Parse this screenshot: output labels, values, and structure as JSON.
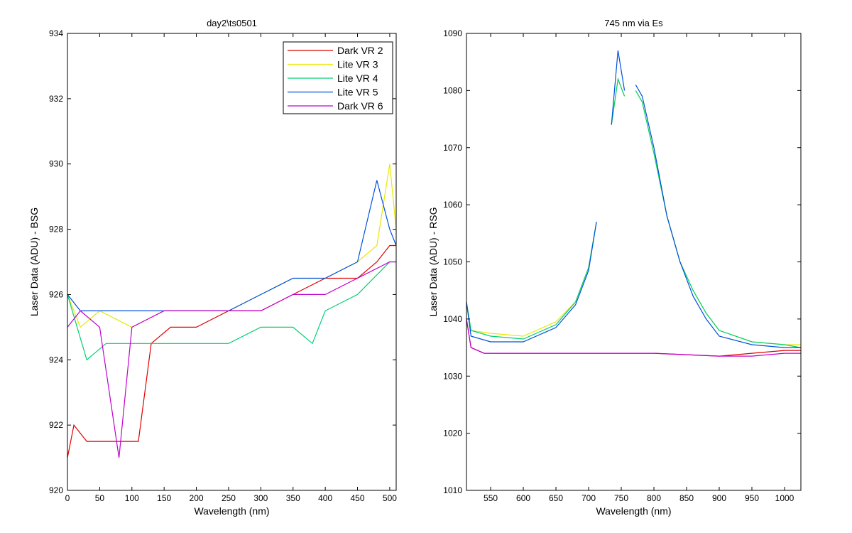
{
  "chart_data": [
    {
      "type": "line",
      "title": "day2\\ts0501",
      "xlabel": "Wavelength (nm)",
      "ylabel": "Laser Data (ADU) - BSG",
      "xlim": [
        0,
        510
      ],
      "ylim": [
        920,
        934
      ],
      "xticks": [
        0,
        50,
        100,
        150,
        200,
        250,
        300,
        350,
        400,
        450,
        500
      ],
      "yticks": [
        920,
        922,
        924,
        926,
        928,
        930,
        932,
        934
      ],
      "legend_position": "top-right",
      "series": [
        {
          "name": "Dark VR 2",
          "color": "#e00000",
          "x": [
            0,
            10,
            30,
            60,
            90,
            110,
            130,
            160,
            200,
            250,
            300,
            350,
            400,
            450,
            480,
            500,
            510
          ],
          "y": [
            921,
            922,
            921.5,
            921.5,
            921.5,
            921.5,
            924.5,
            925,
            925,
            925.5,
            925.5,
            926,
            926.5,
            926.5,
            927,
            927.5,
            927.5
          ]
        },
        {
          "name": "Lite VR 3",
          "color": "#e8e800",
          "x": [
            0,
            20,
            50,
            100,
            150,
            200,
            250,
            300,
            350,
            400,
            450,
            480,
            500,
            510
          ],
          "y": [
            926,
            925,
            925.5,
            925,
            925.5,
            925.5,
            925.5,
            926,
            926.5,
            926.5,
            927,
            927.5,
            930,
            928
          ]
        },
        {
          "name": "Lite VR 4",
          "color": "#00d070",
          "x": [
            0,
            30,
            60,
            100,
            150,
            200,
            250,
            300,
            350,
            380,
            400,
            450,
            500,
            510
          ],
          "y": [
            926,
            924,
            924.5,
            924.5,
            924.5,
            924.5,
            924.5,
            925,
            925,
            924.5,
            925.5,
            926,
            927,
            927
          ]
        },
        {
          "name": "Lite VR 5",
          "color": "#0050e0",
          "x": [
            0,
            20,
            50,
            100,
            150,
            200,
            250,
            300,
            350,
            400,
            450,
            480,
            500,
            510
          ],
          "y": [
            926,
            925.5,
            925.5,
            925.5,
            925.5,
            925.5,
            925.5,
            926,
            926.5,
            926.5,
            927,
            929.5,
            928,
            927.5
          ]
        },
        {
          "name": "Dark VR 6",
          "color": "#c000d0",
          "x": [
            0,
            20,
            50,
            80,
            100,
            150,
            200,
            250,
            300,
            350,
            400,
            450,
            500,
            510
          ],
          "y": [
            925,
            925.5,
            925,
            921,
            925,
            925.5,
            925.5,
            925.5,
            925.5,
            926,
            926,
            926.5,
            927,
            927
          ]
        }
      ]
    },
    {
      "type": "line",
      "title": "745 nm via Es",
      "xlabel": "Wavelength (nm)",
      "ylabel": "Laser Data (ADU) - RSG",
      "xlim": [
        513,
        1025
      ],
      "ylim": [
        1010,
        1090
      ],
      "xticks": [
        550,
        600,
        650,
        700,
        750,
        800,
        850,
        900,
        950,
        1000
      ],
      "yticks": [
        1010,
        1020,
        1030,
        1040,
        1050,
        1060,
        1070,
        1080,
        1090
      ],
      "series": [
        {
          "name": "Dark VR 2",
          "color": "#e00000",
          "x": [
            513,
            520,
            540,
            600,
            700,
            800,
            900,
            950,
            1000,
            1025
          ],
          "y": [
            1040,
            1035,
            1034,
            1034,
            1034,
            1034,
            1033.5,
            1034,
            1034.5,
            1034.5
          ]
        },
        {
          "name": "Lite VR 3",
          "color": "#e8e800",
          "x": [
            513,
            520,
            550,
            600,
            650,
            680,
            700,
            712,
            null,
            735,
            745,
            755,
            null,
            772,
            782,
            800,
            820,
            840,
            860,
            880,
            900,
            950,
            1000,
            1025
          ],
          "y": [
            1043,
            1038,
            1037.5,
            1037,
            1039.5,
            1043,
            1049,
            1057,
            null,
            1074,
            1082,
            1079,
            null,
            1080,
            1078,
            1069,
            1058,
            1050,
            1045,
            1041,
            1038,
            1036,
            1035.5,
            1035.5
          ]
        },
        {
          "name": "Lite VR 4",
          "color": "#00d070",
          "x": [
            513,
            520,
            550,
            600,
            650,
            680,
            700,
            712,
            null,
            735,
            745,
            755,
            null,
            772,
            782,
            800,
            820,
            840,
            860,
            880,
            900,
            950,
            1000,
            1025
          ],
          "y": [
            1043,
            1038,
            1037,
            1036.5,
            1039,
            1043,
            1049,
            1057,
            null,
            1074,
            1082,
            1079,
            null,
            1080,
            1078,
            1069,
            1058,
            1050,
            1045,
            1041,
            1038,
            1036,
            1035.5,
            1035
          ]
        },
        {
          "name": "Lite VR 5",
          "color": "#0050e0",
          "x": [
            513,
            520,
            550,
            600,
            650,
            680,
            700,
            712,
            null,
            735,
            745,
            755,
            null,
            772,
            782,
            800,
            820,
            840,
            860,
            880,
            900,
            950,
            1000,
            1025
          ],
          "y": [
            1043,
            1037,
            1036,
            1036,
            1038.5,
            1042.5,
            1048.5,
            1057,
            null,
            1074,
            1087,
            1080,
            null,
            1081,
            1079,
            1070,
            1058,
            1050,
            1044,
            1040,
            1037,
            1035.5,
            1035,
            1035
          ]
        },
        {
          "name": "Dark VR 6",
          "color": "#c000d0",
          "x": [
            513,
            520,
            540,
            600,
            700,
            800,
            900,
            950,
            1000,
            1025
          ],
          "y": [
            1040,
            1035,
            1034,
            1034,
            1034,
            1034,
            1033.5,
            1033.5,
            1034,
            1034
          ]
        }
      ]
    }
  ]
}
